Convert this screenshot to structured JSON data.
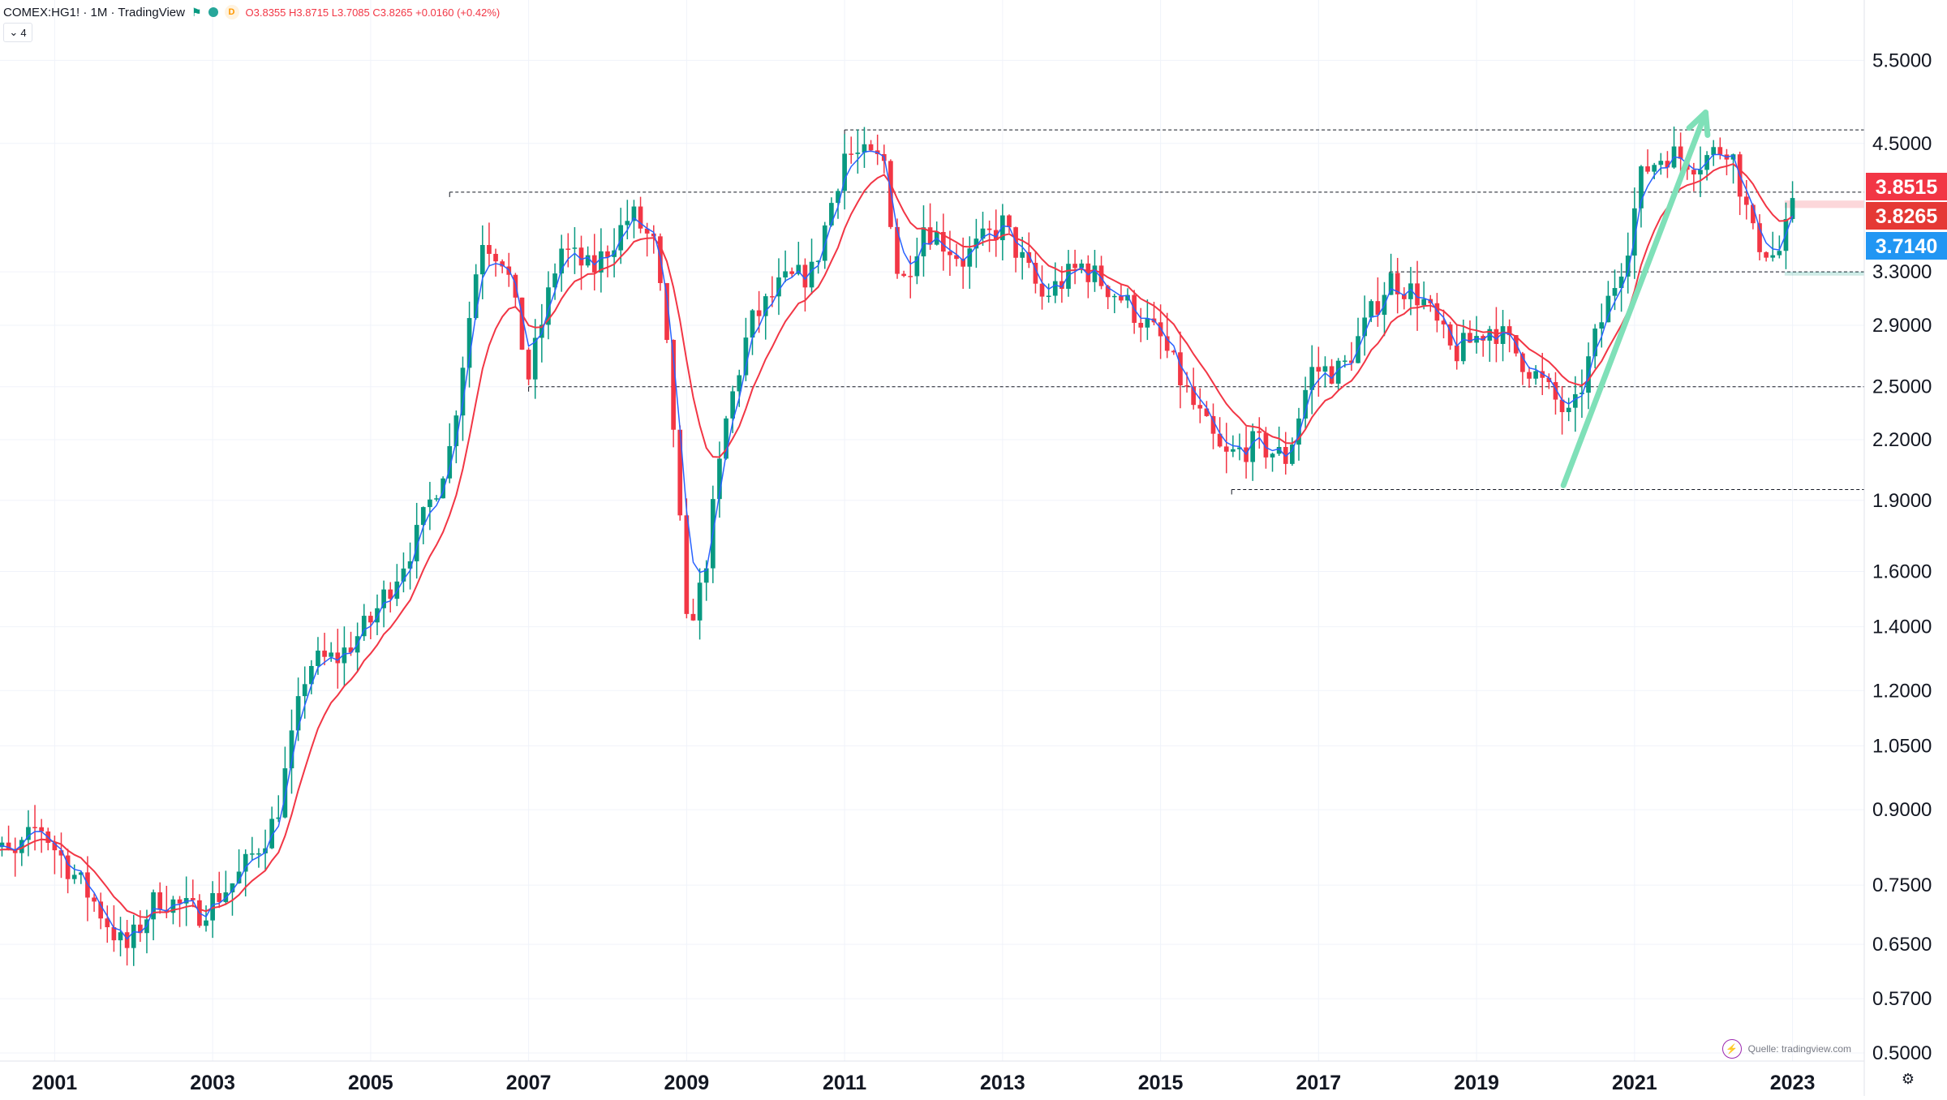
{
  "legend": {
    "symbol": "COMEX:HG1! · 1M · TradingView",
    "d_badge": "D",
    "ohlc": "O3.8355 H3.8715 L3.7085 C3.8265 +0.0160 (+0.42%)",
    "collapse_label": "4"
  },
  "source_label": "Quelle: tradingview.com",
  "icons": {
    "flag": "flag-icon",
    "bolt": "lightning-icon",
    "gear": "gear-icon",
    "chevron": "chevron-down-icon"
  },
  "colors": {
    "up": "#089981",
    "down": "#f23645",
    "ma_slow": "#f23645",
    "ma_fast": "#2962ff",
    "label_red": "#f23645",
    "label_red_dark": "#e53935",
    "label_blue": "#2196f3",
    "arrow": "#7fe0b8"
  },
  "chart_data": {
    "type": "candlestick",
    "title": "COMEX:HG1! · 1M · TradingView",
    "scale": "log",
    "ylim": [
      0.5,
      6.0
    ],
    "xlim": [
      2000.0,
      2023.6
    ],
    "grid": true,
    "y_ticks": [
      "5.5000",
      "4.5000",
      "3.3000",
      "2.9000",
      "2.5000",
      "2.2000",
      "1.9000",
      "1.6000",
      "1.4000",
      "1.2000",
      "1.0500",
      "0.9000",
      "0.7500",
      "0.6500",
      "0.5700",
      "0.5000"
    ],
    "x_ticks": [
      "2001",
      "2003",
      "2005",
      "2007",
      "2009",
      "2011",
      "2013",
      "2015",
      "2017",
      "2019",
      "2021",
      "2023"
    ],
    "series": [
      {
        "name": "close",
        "points": [
          [
            2000.0,
            0.84
          ],
          [
            2000.5,
            0.8
          ],
          [
            2000.8,
            0.87
          ],
          [
            2001.0,
            0.82
          ],
          [
            2001.5,
            0.72
          ],
          [
            2001.9,
            0.64
          ],
          [
            2002.3,
            0.73
          ],
          [
            2002.8,
            0.7
          ],
          [
            2003.3,
            0.76
          ],
          [
            2003.8,
            0.88
          ],
          [
            2004.2,
            1.28
          ],
          [
            2004.6,
            1.3
          ],
          [
            2005.0,
            1.42
          ],
          [
            2005.6,
            1.75
          ],
          [
            2006.0,
            2.15
          ],
          [
            2006.4,
            3.6
          ],
          [
            2006.7,
            3.4
          ],
          [
            2007.0,
            2.56
          ],
          [
            2007.4,
            3.5
          ],
          [
            2007.8,
            3.3
          ],
          [
            2008.3,
            3.8
          ],
          [
            2008.6,
            3.5
          ],
          [
            2008.8,
            2.5
          ],
          [
            2009.0,
            1.4
          ],
          [
            2009.2,
            1.55
          ],
          [
            2009.5,
            2.3
          ],
          [
            2009.8,
            2.9
          ],
          [
            2010.2,
            3.2
          ],
          [
            2010.6,
            3.3
          ],
          [
            2011.0,
            4.4
          ],
          [
            2011.5,
            4.3
          ],
          [
            2011.7,
            3.15
          ],
          [
            2012.0,
            3.7
          ],
          [
            2012.5,
            3.4
          ],
          [
            2013.0,
            3.7
          ],
          [
            2013.5,
            3.1
          ],
          [
            2014.0,
            3.35
          ],
          [
            2014.5,
            3.1
          ],
          [
            2015.0,
            2.8
          ],
          [
            2015.4,
            2.4
          ],
          [
            2015.8,
            2.1
          ],
          [
            2016.2,
            2.18
          ],
          [
            2016.6,
            2.1
          ],
          [
            2016.9,
            2.6
          ],
          [
            2017.3,
            2.6
          ],
          [
            2017.9,
            3.25
          ],
          [
            2018.3,
            3.1
          ],
          [
            2018.7,
            2.7
          ],
          [
            2019.2,
            2.9
          ],
          [
            2019.7,
            2.6
          ],
          [
            2020.2,
            2.3
          ],
          [
            2020.5,
            2.8
          ],
          [
            2020.9,
            3.5
          ],
          [
            2021.1,
            4.2
          ],
          [
            2021.4,
            4.4
          ],
          [
            2021.8,
            4.3
          ],
          [
            2022.2,
            4.5
          ],
          [
            2022.5,
            3.6
          ],
          [
            2022.8,
            3.4
          ],
          [
            2023.0,
            3.8265
          ]
        ]
      },
      {
        "name": "ma_slow",
        "points": [
          [
            2000.0,
            0.75
          ],
          [
            2001.0,
            0.85
          ],
          [
            2002.0,
            0.7
          ],
          [
            2003.0,
            0.72
          ],
          [
            2004.0,
            0.95
          ],
          [
            2004.8,
            1.2
          ],
          [
            2005.6,
            1.5
          ],
          [
            2006.3,
            2.3
          ],
          [
            2007.0,
            3.1
          ],
          [
            2007.6,
            3.0
          ],
          [
            2008.5,
            3.4
          ],
          [
            2009.3,
            1.9
          ],
          [
            2010.0,
            2.8
          ],
          [
            2010.6,
            3.2
          ],
          [
            2011.5,
            4.1
          ],
          [
            2012.3,
            3.5
          ],
          [
            2013.0,
            3.4
          ],
          [
            2014.0,
            3.2
          ],
          [
            2014.8,
            2.9
          ],
          [
            2015.7,
            2.4
          ],
          [
            2016.4,
            2.1
          ],
          [
            2017.0,
            2.4
          ],
          [
            2017.8,
            2.9
          ],
          [
            2018.6,
            2.85
          ],
          [
            2019.4,
            2.7
          ],
          [
            2020.3,
            2.6
          ],
          [
            2020.9,
            3.1
          ],
          [
            2021.6,
            4.0
          ],
          [
            2022.3,
            4.3
          ],
          [
            2023.0,
            3.85
          ]
        ]
      }
    ],
    "annotations": {
      "price_labels": [
        "3.8515",
        "3.8265",
        "3.7140"
      ],
      "horizontal_levels": [
        4.65,
        4.0,
        3.3,
        2.5,
        1.95
      ],
      "arrow": {
        "from": [
          2020.1,
          1.97
        ],
        "to": [
          2021.9,
          4.85
        ]
      }
    }
  }
}
